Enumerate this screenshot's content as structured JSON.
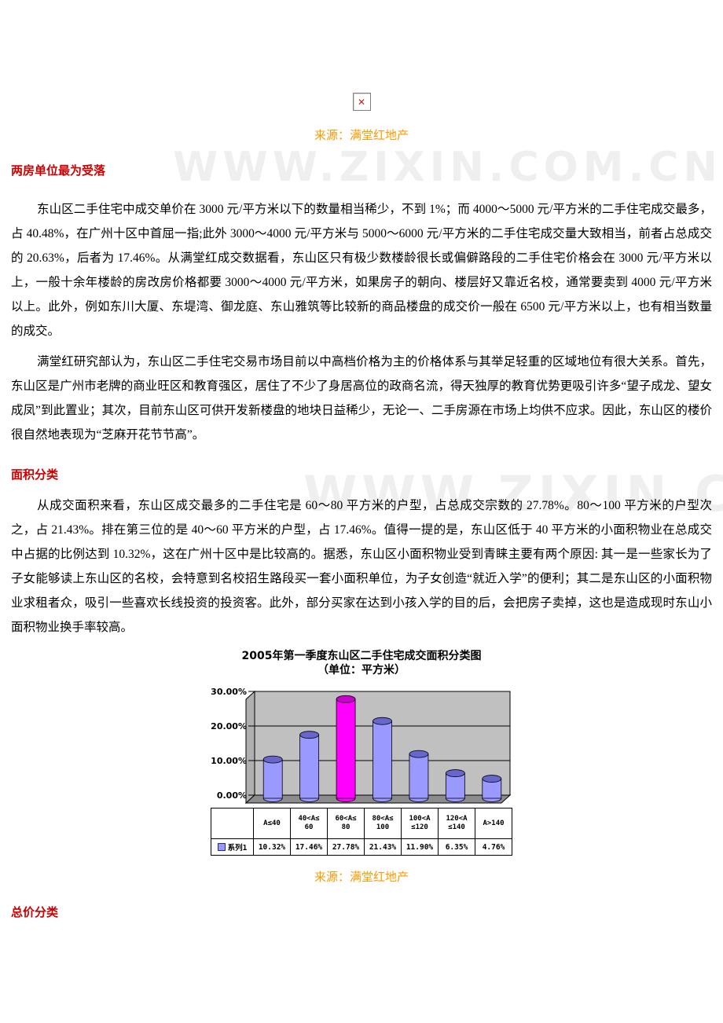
{
  "watermark": "WWW.ZIXIN.COM.CN",
  "icons": {
    "broken_image_glyph": "✕"
  },
  "source_top": {
    "text": "来源：满堂红地产"
  },
  "source_bottom": {
    "text": "来源：满堂红地产"
  },
  "sections": {
    "heading_price": "两房单位最为受落",
    "heading_area": "面积分类",
    "heading_total_price": "总价分类"
  },
  "paragraphs": {
    "p1": "东山区二手住宅中成交单价在 3000 元/平方米以下的数量相当稀少，不到 1%；而 4000～5000 元/平方米的二手住宅成交最多，占 40.48%，在广州十区中首屈一指;此外 3000～4000 元/平方米与 5000～6000 元/平方米的二手住宅成交量大致相当，前者占总成交的 20.63%，后者为 17.46%。从满堂红成交数据看，东山区只有极少数楼龄很长或偏僻路段的二手住宅价格会在 3000 元/平方米以上，一般十余年楼龄的房改房价格都要 3000～4000 元/平方米，如果房子的朝向、楼层好又靠近名校，通常要卖到 4000 元/平方米以上。此外，例如东川大厦、东堤湾、御龙庭、东山雅筑等比较新的商品楼盘的成交价一般在 6500 元/平方米以上，也有相当数量的成交。",
    "p2": "满堂红研究部认为，东山区二手住宅交易市场目前以中高档价格为主的价格体系与其举足轻重的区域地位有很大关系。首先，东山区是广州市老牌的商业旺区和教育强区，居住了不少了身居高位的政商名流，得天独厚的教育优势更吸引许多“望子成龙、望女成凤”到此置业；其次，目前东山区可供开发新楼盘的地块日益稀少，无论一、二手房源在市场上均供不应求。因此，东山区的楼价很自然地表现为“芝麻开花节节高”。",
    "p3": "从成交面积来看，东山区成交最多的二手住宅是 60～80 平方米的户型，占总成交宗数的 27.78%。80～100 平方米的户型次之，占 21.43%。排在第三位的是 40～60 平方米的户型，占 17.46%。值得一提的是，东山区低于 40 平方米的小面积物业在总成交中占据的比例达到 10.32%，这在广州十区中是比较高的。据悉，东山区小面积物业受到青睐主要有两个原因: 其一是一些家长为了子女能够读上东山区的名校，会特意到名校招生路段买一套小面积单位，为子女创造“就近入学”的便利；其二是东山区的小面积物业求租者众，吸引一些喜欢长线投资的投资客。此外，部分买家在达到小孩入学的目的后，会把房子卖掉，这也是造成现时东山小面积物业换手率较高。"
  },
  "colors": {
    "heading": "#cc0000",
    "source": "#ff9900",
    "bar": "#9999ff",
    "bar_cap": "#6666cc",
    "bar_highlight": "#ff00ff",
    "bar_highlight_cap": "#cc00cc",
    "wall": "#c0c0c0",
    "wall_side": "#b0b0b0",
    "floor": "#8c8c8c"
  },
  "chart_data": {
    "type": "bar",
    "style": "3d-cylinder",
    "title": "2005年第一季度东山区二手住宅成交面积分类图",
    "subtitle": "（单位：平方米）",
    "categories": [
      "A≤40",
      "40<A≤60",
      "60<A≤80",
      "80<A≤100",
      "100<A≤120",
      "120<A≤140",
      "A>140"
    ],
    "category_display": [
      "A≤40",
      "40<A≤\n60",
      "60<A≤\n80",
      "80<A≤\n100",
      "100<A\n≤120",
      "120<A\n≤140",
      "A>140"
    ],
    "series": [
      {
        "name": "系列1",
        "values": [
          10.32,
          17.46,
          27.78,
          21.43,
          11.9,
          6.35,
          4.76
        ]
      }
    ],
    "value_labels": [
      "10.32%",
      "17.46%",
      "27.78%",
      "21.43%",
      "11.90%",
      "6.35%",
      "4.76%"
    ],
    "yticks": [
      "30.00%",
      "20.00%",
      "10.00%",
      "0.00%"
    ],
    "ylim": [
      0,
      30
    ],
    "grid": true,
    "highlight_index": 2,
    "legend_position": "table-left",
    "xlabel": "",
    "ylabel": ""
  }
}
